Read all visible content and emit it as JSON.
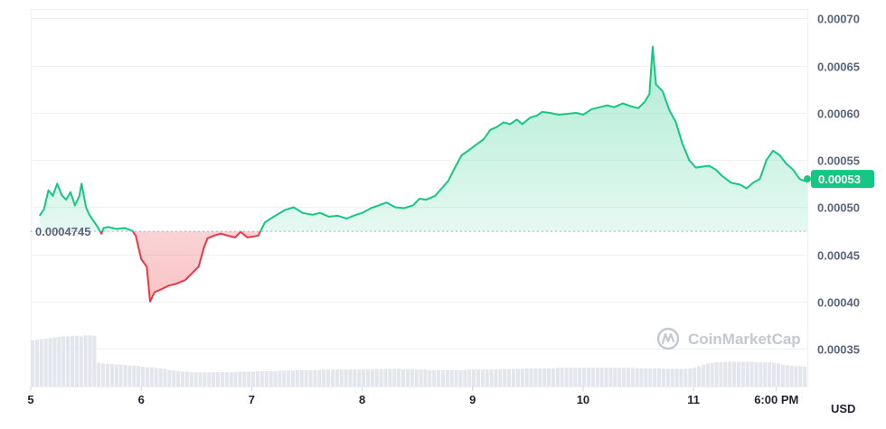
{
  "chart_data": {
    "type": "area",
    "y_axis": {
      "min": 0.00031,
      "max": 0.00071,
      "ticks": [
        {
          "value": 0.0007,
          "label": "0.00070"
        },
        {
          "value": 0.00065,
          "label": "0.00065"
        },
        {
          "value": 0.0006,
          "label": "0.00060"
        },
        {
          "value": 0.00055,
          "label": "0.00055"
        },
        {
          "value": 0.0005,
          "label": "0.00050"
        },
        {
          "value": 0.00045,
          "label": "0.00045"
        },
        {
          "value": 0.0004,
          "label": "0.00040"
        },
        {
          "value": 0.00035,
          "label": "0.00035"
        }
      ],
      "position": "right",
      "currency": "USD"
    },
    "x_axis": {
      "min": 5.0,
      "max": 12.03,
      "ticks": [
        {
          "value": 5.0,
          "label": "5"
        },
        {
          "value": 6.0,
          "label": "6"
        },
        {
          "value": 7.0,
          "label": "7"
        },
        {
          "value": 8.0,
          "label": "8"
        },
        {
          "value": 9.0,
          "label": "9"
        },
        {
          "value": 10.0,
          "label": "10"
        },
        {
          "value": 11.0,
          "label": "11"
        },
        {
          "value": 11.75,
          "label": "6:00 PM"
        }
      ]
    },
    "reference_price": {
      "value": 0.0004745,
      "label": "0.0004745"
    },
    "current_price": {
      "value": 0.00053,
      "label": "0.00053"
    },
    "colors": {
      "up": "#16c784",
      "down": "#ea3943",
      "volume": "#e3e6ec",
      "grid": "#eff2f5"
    },
    "series": [
      {
        "values": [
          [
            5.08,
            0.000491
          ],
          [
            5.12,
            0.000498
          ],
          [
            5.16,
            0.000518
          ],
          [
            5.2,
            0.000512
          ],
          [
            5.24,
            0.000525
          ],
          [
            5.28,
            0.000513
          ],
          [
            5.32,
            0.000508
          ],
          [
            5.36,
            0.000516
          ],
          [
            5.4,
            0.000502
          ],
          [
            5.44,
            0.000512
          ],
          [
            5.46,
            0.000525
          ],
          [
            5.5,
            0.0005
          ],
          [
            5.53,
            0.000492
          ],
          [
            5.6,
            0.00048
          ],
          [
            5.64,
            0.000472
          ],
          [
            5.66,
            0.000478
          ],
          [
            5.7,
            0.000479
          ],
          [
            5.78,
            0.000477
          ],
          [
            5.85,
            0.000478
          ],
          [
            5.92,
            0.000475
          ],
          [
            5.95,
            0.00047
          ],
          [
            6.0,
            0.000445
          ],
          [
            6.05,
            0.000437
          ],
          [
            6.08,
            0.0004
          ],
          [
            6.12,
            0.00041
          ],
          [
            6.18,
            0.000413
          ],
          [
            6.25,
            0.000417
          ],
          [
            6.32,
            0.000419
          ],
          [
            6.4,
            0.000423
          ],
          [
            6.46,
            0.00043
          ],
          [
            6.52,
            0.000437
          ],
          [
            6.57,
            0.000458
          ],
          [
            6.6,
            0.000467
          ],
          [
            6.66,
            0.00047
          ],
          [
            6.72,
            0.000472
          ],
          [
            6.78,
            0.00047
          ],
          [
            6.85,
            0.000468
          ],
          [
            6.9,
            0.000474
          ],
          [
            6.96,
            0.000468
          ],
          [
            7.02,
            0.000469
          ],
          [
            7.06,
            0.00047
          ],
          [
            7.12,
            0.000484
          ],
          [
            7.2,
            0.00049
          ],
          [
            7.3,
            0.000497
          ],
          [
            7.38,
            0.0005
          ],
          [
            7.46,
            0.000494
          ],
          [
            7.55,
            0.000492
          ],
          [
            7.62,
            0.000494
          ],
          [
            7.7,
            0.00049
          ],
          [
            7.78,
            0.000491
          ],
          [
            7.86,
            0.000488
          ],
          [
            7.92,
            0.000491
          ],
          [
            8.0,
            0.000494
          ],
          [
            8.08,
            0.000499
          ],
          [
            8.15,
            0.000502
          ],
          [
            8.22,
            0.000505
          ],
          [
            8.3,
            0.0005
          ],
          [
            8.38,
            0.000499
          ],
          [
            8.46,
            0.000502
          ],
          [
            8.52,
            0.000509
          ],
          [
            8.58,
            0.000508
          ],
          [
            8.66,
            0.000512
          ],
          [
            8.72,
            0.00052
          ],
          [
            8.78,
            0.000528
          ],
          [
            8.84,
            0.000542
          ],
          [
            8.9,
            0.000555
          ],
          [
            8.96,
            0.00056
          ],
          [
            9.04,
            0.000567
          ],
          [
            9.1,
            0.000572
          ],
          [
            9.16,
            0.000582
          ],
          [
            9.22,
            0.000585
          ],
          [
            9.28,
            0.00059
          ],
          [
            9.34,
            0.000588
          ],
          [
            9.4,
            0.000593
          ],
          [
            9.45,
            0.000588
          ],
          [
            9.52,
            0.000595
          ],
          [
            9.58,
            0.000597
          ],
          [
            9.63,
            0.000601
          ],
          [
            9.7,
            0.0006
          ],
          [
            9.78,
            0.000598
          ],
          [
            9.86,
            0.000599
          ],
          [
            9.94,
            0.0006
          ],
          [
            10.0,
            0.000598
          ],
          [
            10.08,
            0.000604
          ],
          [
            10.15,
            0.000606
          ],
          [
            10.22,
            0.000608
          ],
          [
            10.28,
            0.000606
          ],
          [
            10.36,
            0.00061
          ],
          [
            10.43,
            0.000607
          ],
          [
            10.5,
            0.000605
          ],
          [
            10.56,
            0.000612
          ],
          [
            10.6,
            0.00062
          ],
          [
            10.63,
            0.00067
          ],
          [
            10.66,
            0.00063
          ],
          [
            10.72,
            0.000623
          ],
          [
            10.78,
            0.000603
          ],
          [
            10.84,
            0.00059
          ],
          [
            10.9,
            0.000567
          ],
          [
            10.96,
            0.00055
          ],
          [
            11.02,
            0.000542
          ],
          [
            11.08,
            0.000543
          ],
          [
            11.14,
            0.000544
          ],
          [
            11.2,
            0.00054
          ],
          [
            11.26,
            0.000533
          ],
          [
            11.34,
            0.000526
          ],
          [
            11.42,
            0.000524
          ],
          [
            11.48,
            0.00052
          ],
          [
            11.54,
            0.000526
          ],
          [
            11.6,
            0.00053
          ],
          [
            11.66,
            0.00055
          ],
          [
            11.72,
            0.00056
          ],
          [
            11.78,
            0.000555
          ],
          [
            11.84,
            0.000546
          ],
          [
            11.9,
            0.00054
          ],
          [
            11.96,
            0.00053
          ],
          [
            12.0,
            0.000528
          ],
          [
            12.03,
            0.000528
          ]
        ]
      }
    ],
    "volume": [
      0.84,
      0.85,
      0.86,
      0.87,
      0.88,
      0.89,
      0.9,
      0.91,
      0.91,
      0.92,
      0.92,
      0.91,
      0.93,
      0.93,
      0.92,
      0.43,
      0.42,
      0.41,
      0.41,
      0.4,
      0.4,
      0.39,
      0.38,
      0.38,
      0.37,
      0.36,
      0.35,
      0.35,
      0.34,
      0.33,
      0.32,
      0.3,
      0.29,
      0.28,
      0.27,
      0.27,
      0.26,
      0.26,
      0.26,
      0.26,
      0.26,
      0.26,
      0.26,
      0.26,
      0.26,
      0.26,
      0.26,
      0.27,
      0.27,
      0.27,
      0.27,
      0.28,
      0.28,
      0.28,
      0.28,
      0.28,
      0.29,
      0.29,
      0.29,
      0.29,
      0.3,
      0.3,
      0.3,
      0.3,
      0.3,
      0.3,
      0.31,
      0.31,
      0.31,
      0.31,
      0.31,
      0.31,
      0.31,
      0.31,
      0.31,
      0.31,
      0.31,
      0.31,
      0.32,
      0.32,
      0.32,
      0.32,
      0.32,
      0.32,
      0.31,
      0.31,
      0.31,
      0.31,
      0.31,
      0.31,
      0.3,
      0.3,
      0.3,
      0.3,
      0.3,
      0.3,
      0.3,
      0.3,
      0.3,
      0.31,
      0.31,
      0.31,
      0.31,
      0.31,
      0.31,
      0.31,
      0.31,
      0.32,
      0.32,
      0.32,
      0.32,
      0.32,
      0.33,
      0.33,
      0.33,
      0.33,
      0.33,
      0.33,
      0.33,
      0.34,
      0.34,
      0.34,
      0.34,
      0.34,
      0.34,
      0.34,
      0.34,
      0.34,
      0.34,
      0.34,
      0.34,
      0.34,
      0.34,
      0.34,
      0.34,
      0.34,
      0.34,
      0.33,
      0.33,
      0.33,
      0.33,
      0.33,
      0.33,
      0.32,
      0.32,
      0.32,
      0.32,
      0.32,
      0.32,
      0.33,
      0.34,
      0.37,
      0.4,
      0.42,
      0.43,
      0.44,
      0.44,
      0.45,
      0.45,
      0.45,
      0.45,
      0.45,
      0.45,
      0.45,
      0.44,
      0.44,
      0.44,
      0.44,
      0.43,
      0.42,
      0.4,
      0.39,
      0.38,
      0.37,
      0.37,
      0.36
    ],
    "watermark": "CoinMarketCap"
  }
}
